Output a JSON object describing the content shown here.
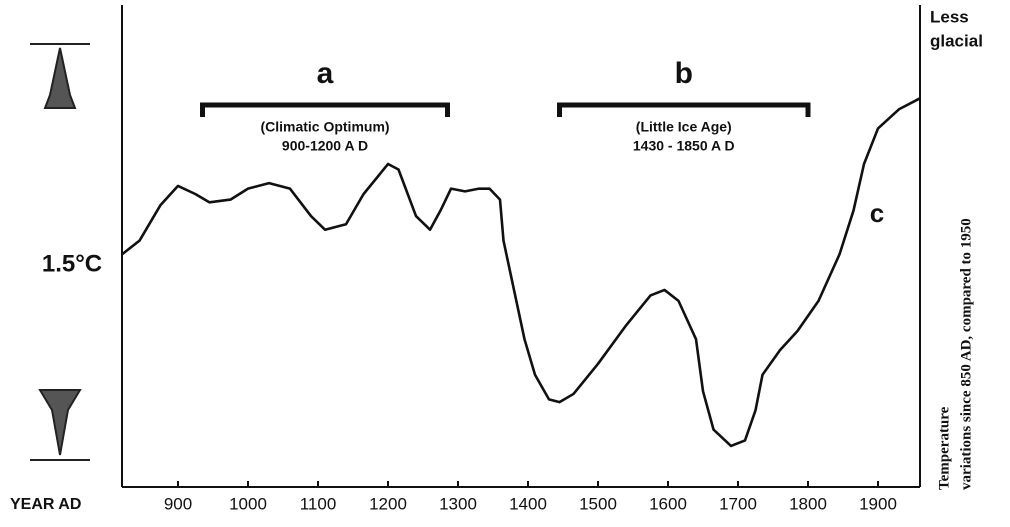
{
  "chart_data": {
    "type": "line",
    "xlabel": "YEAR AD",
    "scale_label": "1.5°C",
    "corner_label": [
      "Less",
      "glacial"
    ],
    "ylabel": [
      "Temperature",
      "variations since 850 AD, compared to 1950"
    ],
    "xlim": [
      820,
      1960
    ],
    "ylim": [
      -0.1,
      1.65
    ],
    "xticks": [
      900,
      1000,
      1100,
      1200,
      1300,
      1400,
      1500,
      1600,
      1700,
      1800,
      1900
    ],
    "series": [
      {
        "color": "#111111",
        "x": [
          820,
          845,
          875,
          900,
          925,
          945,
          975,
          1000,
          1030,
          1060,
          1090,
          1110,
          1140,
          1165,
          1200,
          1215,
          1240,
          1260,
          1275,
          1290,
          1310,
          1330,
          1345,
          1360,
          1365,
          1380,
          1395,
          1410,
          1430,
          1445,
          1465,
          1500,
          1540,
          1575,
          1595,
          1615,
          1640,
          1650,
          1665,
          1690,
          1710,
          1725,
          1735,
          1760,
          1785,
          1815,
          1845,
          1865,
          1880,
          1900,
          1930,
          1960
        ],
        "values": [
          0.75,
          0.8,
          0.93,
          1.0,
          0.97,
          0.94,
          0.95,
          0.99,
          1.01,
          0.99,
          0.89,
          0.84,
          0.86,
          0.97,
          1.08,
          1.06,
          0.89,
          0.84,
          0.91,
          0.99,
          0.98,
          0.99,
          0.99,
          0.95,
          0.8,
          0.62,
          0.44,
          0.31,
          0.22,
          0.21,
          0.24,
          0.35,
          0.49,
          0.6,
          0.62,
          0.58,
          0.44,
          0.25,
          0.11,
          0.05,
          0.07,
          0.18,
          0.31,
          0.4,
          0.47,
          0.58,
          0.75,
          0.91,
          1.08,
          1.21,
          1.28,
          1.32
        ]
      }
    ],
    "periods": [
      {
        "letter": "a",
        "name": "(Climatic Optimum)",
        "range": "900-1200 A D",
        "start": 935,
        "end": 1285
      },
      {
        "letter": "b",
        "name": "(Little Ice Age)",
        "range": "1430 - 1850 A D",
        "start": 1445,
        "end": 1800
      }
    ],
    "annotation": "c"
  }
}
